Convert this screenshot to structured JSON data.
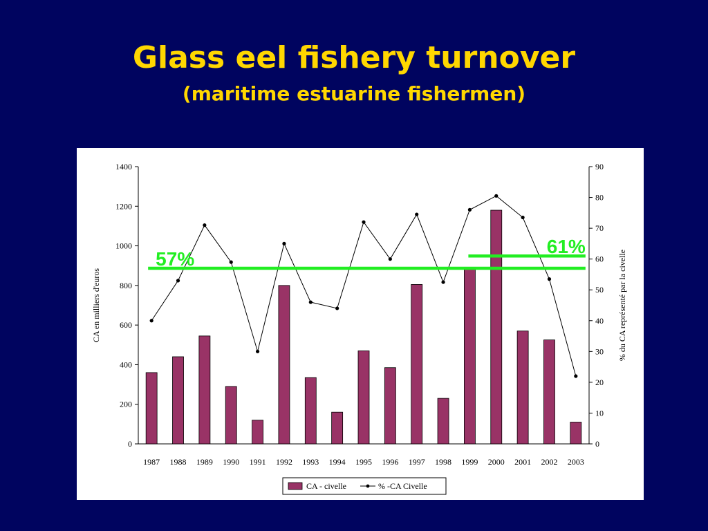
{
  "title": "Glass eel fishery turnover",
  "subtitle": "(maritime estuarine fishermen)",
  "chart_data": {
    "type": "bar",
    "categories": [
      "1987",
      "1988",
      "1989",
      "1990",
      "1991",
      "1992",
      "1993",
      "1994",
      "1995",
      "1996",
      "1997",
      "1998",
      "1999",
      "2000",
      "2001",
      "2002",
      "2003"
    ],
    "series": [
      {
        "name": "CA - civelle",
        "type": "bar",
        "axis": "left",
        "color": "#993366",
        "values": [
          360,
          440,
          545,
          290,
          120,
          800,
          335,
          160,
          470,
          385,
          805,
          230,
          890,
          1180,
          570,
          525,
          110
        ]
      },
      {
        "name": "% -CA Civelle",
        "type": "line",
        "axis": "right",
        "color": "#000000",
        "values": [
          40,
          53,
          71,
          59,
          30,
          65,
          46,
          44,
          72,
          60,
          74.5,
          52.5,
          76,
          80.5,
          73.5,
          53.5,
          22
        ]
      }
    ],
    "ylabel": "CA en milliers d'euros",
    "ylabel_right": "% du CA représenté par la civelle",
    "ylim": [
      0,
      1400
    ],
    "yticks": [
      0,
      200,
      400,
      600,
      800,
      1000,
      1200,
      1400
    ],
    "ylim_right": [
      0,
      90
    ],
    "yticks_right": [
      0,
      10,
      20,
      30,
      40,
      50,
      60,
      70,
      80,
      90
    ],
    "legend_position": "bottom",
    "annotations": [
      {
        "label": "57%",
        "value": 57,
        "axis": "right",
        "from": "1987",
        "to": "2003",
        "color": "#22ee22"
      },
      {
        "label": "61%",
        "value": 61,
        "axis": "right",
        "from": "1999",
        "to": "2003",
        "color": "#22ee22"
      }
    ]
  }
}
